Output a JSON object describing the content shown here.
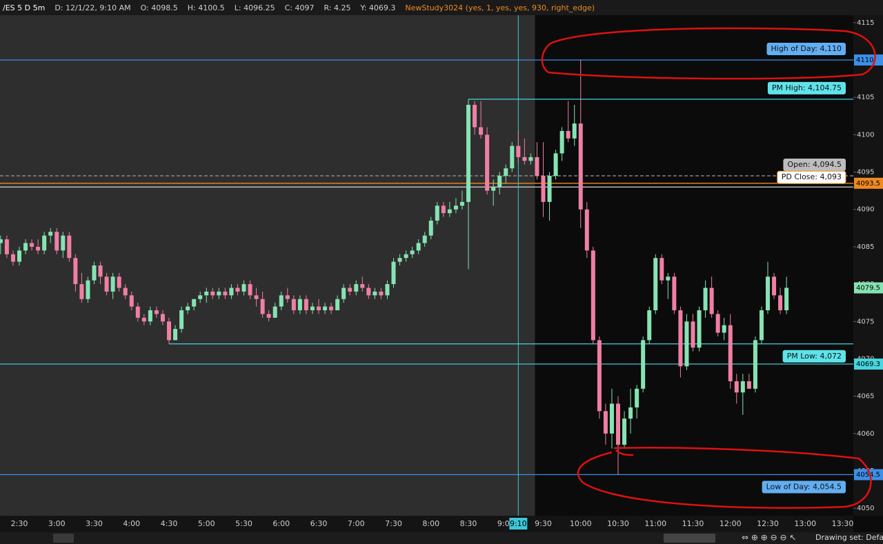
{
  "chart_data": {
    "type": "candlestick",
    "symbol": "/ES 5 D 5m",
    "info": [
      "D: 12/1/22, 9:10 AM",
      "O: 4098.5",
      "H: 4100.5",
      "L: 4096.25",
      "C: 4097",
      "R: 4.25",
      "Y: 4069.3"
    ],
    "study": "NewStudy3024 (yes, 1, yes, yes, 930, right_edge)",
    "up_color": "#86e3b3",
    "down_color": "#ef7fa3",
    "session_start": "9:30",
    "crosshair_x": "9:10",
    "ylim": [
      4049,
      4116
    ],
    "yticks": [
      4050,
      4055,
      4060,
      4065,
      4070,
      4075,
      4080,
      4085,
      4090,
      4095,
      4100,
      4105,
      4110,
      4115
    ],
    "xticks": [
      "2:30",
      "3:00",
      "3:30",
      "4:00",
      "4:30",
      "5:00",
      "5:30",
      "6:00",
      "6:30",
      "7:00",
      "7:30",
      "8:00",
      "8:30",
      "9:00",
      "9:30",
      "10:00",
      "10:30",
      "11:00",
      "11:30",
      "12:00",
      "12:30",
      "13:00",
      "13:30"
    ],
    "levels": [
      {
        "label": "High of Day: 4,110",
        "value": 4110,
        "color": "#3d8fe8",
        "bubble": "#62aef2"
      },
      {
        "label": "PM High: 4,104.75",
        "value": 4104.75,
        "color": "#45d6df",
        "bubble": "#5fe3ea",
        "start": "8:30"
      },
      {
        "label": "Open: 4,094.5",
        "value": 4094.5,
        "color": "#9a9a9a",
        "bubble": "#bdbdbd",
        "dashed": true
      },
      {
        "label": "PD Close: 4,093",
        "value": 4093,
        "color": "#d8d8d8",
        "bubble": "#ffffff"
      },
      {
        "value": 4093.5,
        "color": "#f08a20"
      },
      {
        "label": "PM Low: 4,072",
        "value": 4072,
        "color": "#45d6df",
        "bubble": "#5fe3ea",
        "start": "4:30"
      },
      {
        "value": 4069.3,
        "color": "#45c6d8"
      },
      {
        "label": "Low of Day: 4,054.5",
        "value": 4054.5,
        "color": "#3d8fe8",
        "bubble": "#62aef2"
      }
    ],
    "price_tags": [
      {
        "value": 4110,
        "color": "#3d8fe8"
      },
      {
        "value": 4093.5,
        "color": "#f08a20"
      },
      {
        "value": 4079.5,
        "color": "#86e3b3"
      },
      {
        "value": 4069.3,
        "color": "#45d6df"
      },
      {
        "value": 4054.5,
        "color": "#3d8fe8"
      }
    ],
    "candles": [
      {
        "x": "2:10",
        "open": 4088,
        "high": 4088.5,
        "low": 4085,
        "close": 4085.5
      },
      {
        "x": "2:15",
        "open": 4085.5,
        "high": 4086.5,
        "low": 4084,
        "close": 4086
      },
      {
        "x": "2:20",
        "open": 4086,
        "high": 4086.5,
        "low": 4083.5,
        "close": 4084
      },
      {
        "x": "2:25",
        "open": 4084,
        "high": 4084.5,
        "low": 4082.5,
        "close": 4083
      },
      {
        "x": "2:30",
        "open": 4083,
        "high": 4085,
        "low": 4082.5,
        "close": 4084.5
      },
      {
        "x": "2:35",
        "open": 4084.5,
        "high": 4086,
        "low": 4084,
        "close": 4085.5
      },
      {
        "x": "2:40",
        "open": 4085.5,
        "high": 4086,
        "low": 4084.5,
        "close": 4085
      },
      {
        "x": "2:45",
        "open": 4085,
        "high": 4086,
        "low": 4084,
        "close": 4084.5
      },
      {
        "x": "2:50",
        "open": 4084.5,
        "high": 4087,
        "low": 4084,
        "close": 4086.5
      },
      {
        "x": "2:55",
        "open": 4086.5,
        "high": 4087.5,
        "low": 4085.5,
        "close": 4087
      },
      {
        "x": "3:00",
        "open": 4087,
        "high": 4087.5,
        "low": 4084,
        "close": 4084.5
      },
      {
        "x": "3:05",
        "open": 4084.5,
        "high": 4087,
        "low": 4083.5,
        "close": 4086.5
      },
      {
        "x": "3:10",
        "open": 4086.5,
        "high": 4087,
        "low": 4083,
        "close": 4083.5
      },
      {
        "x": "3:15",
        "open": 4083.5,
        "high": 4084,
        "low": 4079,
        "close": 4080
      },
      {
        "x": "3:20",
        "open": 4080,
        "high": 4081.5,
        "low": 4077.5,
        "close": 4078
      },
      {
        "x": "3:25",
        "open": 4078,
        "high": 4081,
        "low": 4077.5,
        "close": 4080.5
      },
      {
        "x": "3:30",
        "open": 4080.5,
        "high": 4083,
        "low": 4080,
        "close": 4082.5
      },
      {
        "x": "3:35",
        "open": 4082.5,
        "high": 4083,
        "low": 4080,
        "close": 4081
      },
      {
        "x": "3:40",
        "open": 4081,
        "high": 4081.5,
        "low": 4078.5,
        "close": 4079
      },
      {
        "x": "3:45",
        "open": 4079,
        "high": 4081.5,
        "low": 4078,
        "close": 4081
      },
      {
        "x": "3:50",
        "open": 4081,
        "high": 4081.5,
        "low": 4079,
        "close": 4079.5
      },
      {
        "x": "3:55",
        "open": 4079.5,
        "high": 4080,
        "low": 4078,
        "close": 4078.5
      },
      {
        "x": "4:00",
        "open": 4078.5,
        "high": 4079,
        "low": 4076.5,
        "close": 4077
      },
      {
        "x": "4:05",
        "open": 4077,
        "high": 4077.5,
        "low": 4075,
        "close": 4075.5
      },
      {
        "x": "4:10",
        "open": 4075.5,
        "high": 4076,
        "low": 4074.5,
        "close": 4075
      },
      {
        "x": "4:15",
        "open": 4075,
        "high": 4077,
        "low": 4074.5,
        "close": 4076.5
      },
      {
        "x": "4:20",
        "open": 4076.5,
        "high": 4077,
        "low": 4075.5,
        "close": 4076
      },
      {
        "x": "4:25",
        "open": 4076,
        "high": 4076.5,
        "low": 4074.5,
        "close": 4075
      },
      {
        "x": "4:30",
        "open": 4075,
        "high": 4075.5,
        "low": 4072,
        "close": 4072.5
      },
      {
        "x": "4:35",
        "open": 4072.5,
        "high": 4074.5,
        "low": 4072.5,
        "close": 4074
      },
      {
        "x": "4:40",
        "open": 4074,
        "high": 4077,
        "low": 4073.5,
        "close": 4076.5
      },
      {
        "x": "4:45",
        "open": 4076.5,
        "high": 4077.5,
        "low": 4076,
        "close": 4077
      },
      {
        "x": "4:50",
        "open": 4077,
        "high": 4078,
        "low": 4076.5,
        "close": 4078
      },
      {
        "x": "4:55",
        "open": 4078,
        "high": 4079,
        "low": 4077.5,
        "close": 4078.5
      },
      {
        "x": "5:00",
        "open": 4078.5,
        "high": 4079.5,
        "low": 4077.5,
        "close": 4079
      },
      {
        "x": "5:05",
        "open": 4079,
        "high": 4079.5,
        "low": 4078,
        "close": 4078.5
      },
      {
        "x": "5:10",
        "open": 4078.5,
        "high": 4079.5,
        "low": 4078,
        "close": 4079
      },
      {
        "x": "5:15",
        "open": 4079,
        "high": 4079.5,
        "low": 4078,
        "close": 4078.5
      },
      {
        "x": "5:20",
        "open": 4078.5,
        "high": 4080,
        "low": 4078,
        "close": 4079.5
      },
      {
        "x": "5:25",
        "open": 4079.5,
        "high": 4080,
        "low": 4078.5,
        "close": 4079
      },
      {
        "x": "5:30",
        "open": 4079,
        "high": 4080.5,
        "low": 4078.5,
        "close": 4080
      },
      {
        "x": "5:35",
        "open": 4080,
        "high": 4080.5,
        "low": 4078,
        "close": 4078.5
      },
      {
        "x": "5:40",
        "open": 4078.5,
        "high": 4079.5,
        "low": 4077,
        "close": 4078
      },
      {
        "x": "5:45",
        "open": 4078,
        "high": 4079,
        "low": 4075.5,
        "close": 4076
      },
      {
        "x": "5:50",
        "open": 4076,
        "high": 4076.5,
        "low": 4075,
        "close": 4075.5
      },
      {
        "x": "5:55",
        "open": 4075.5,
        "high": 4077.5,
        "low": 4075.5,
        "close": 4077
      },
      {
        "x": "6:00",
        "open": 4077,
        "high": 4079,
        "low": 4076.5,
        "close": 4078.5
      },
      {
        "x": "6:05",
        "open": 4078.5,
        "high": 4079.5,
        "low": 4077.5,
        "close": 4078
      },
      {
        "x": "6:10",
        "open": 4078,
        "high": 4078.5,
        "low": 4076,
        "close": 4076.5
      },
      {
        "x": "6:15",
        "open": 4076.5,
        "high": 4078.5,
        "low": 4076,
        "close": 4078
      },
      {
        "x": "6:20",
        "open": 4078,
        "high": 4078.5,
        "low": 4076,
        "close": 4076.5
      },
      {
        "x": "6:25",
        "open": 4076.5,
        "high": 4077.5,
        "low": 4076,
        "close": 4077
      },
      {
        "x": "6:30",
        "open": 4077,
        "high": 4078,
        "low": 4076,
        "close": 4076.5
      },
      {
        "x": "6:35",
        "open": 4076.5,
        "high": 4077.5,
        "low": 4076,
        "close": 4077
      },
      {
        "x": "6:40",
        "open": 4077,
        "high": 4077.5,
        "low": 4076,
        "close": 4076.5
      },
      {
        "x": "6:45",
        "open": 4076.5,
        "high": 4078.5,
        "low": 4076.5,
        "close": 4078
      },
      {
        "x": "6:50",
        "open": 4078,
        "high": 4080,
        "low": 4077.5,
        "close": 4079.5
      },
      {
        "x": "6:55",
        "open": 4079.5,
        "high": 4080,
        "low": 4078.5,
        "close": 4079
      },
      {
        "x": "7:00",
        "open": 4079,
        "high": 4080.5,
        "low": 4078.5,
        "close": 4080
      },
      {
        "x": "7:05",
        "open": 4080,
        "high": 4081,
        "low": 4079,
        "close": 4079.5
      },
      {
        "x": "7:10",
        "open": 4079.5,
        "high": 4080,
        "low": 4078,
        "close": 4078.5
      },
      {
        "x": "7:15",
        "open": 4078.5,
        "high": 4079.5,
        "low": 4078,
        "close": 4079
      },
      {
        "x": "7:20",
        "open": 4079,
        "high": 4079.5,
        "low": 4078,
        "close": 4078.5
      },
      {
        "x": "7:25",
        "open": 4078.5,
        "high": 4080.5,
        "low": 4078,
        "close": 4080
      },
      {
        "x": "7:30",
        "open": 4080,
        "high": 4083.5,
        "low": 4079.5,
        "close": 4083
      },
      {
        "x": "7:35",
        "open": 4083,
        "high": 4084,
        "low": 4082.5,
        "close": 4083.5
      },
      {
        "x": "7:40",
        "open": 4083.5,
        "high": 4084.5,
        "low": 4083,
        "close": 4084
      },
      {
        "x": "7:45",
        "open": 4084,
        "high": 4085,
        "low": 4083.5,
        "close": 4084.5
      },
      {
        "x": "7:50",
        "open": 4084.5,
        "high": 4086,
        "low": 4084,
        "close": 4085.5
      },
      {
        "x": "7:55",
        "open": 4085.5,
        "high": 4087,
        "low": 4085,
        "close": 4086.5
      },
      {
        "x": "8:00",
        "open": 4086.5,
        "high": 4089,
        "low": 4086,
        "close": 4088.5
      },
      {
        "x": "8:05",
        "open": 4088.5,
        "high": 4091,
        "low": 4088,
        "close": 4090.5
      },
      {
        "x": "8:10",
        "open": 4090.5,
        "high": 4091,
        "low": 4089,
        "close": 4089.5
      },
      {
        "x": "8:15",
        "open": 4089.5,
        "high": 4091,
        "low": 4089,
        "close": 4090
      },
      {
        "x": "8:20",
        "open": 4090,
        "high": 4091.5,
        "low": 4089.5,
        "close": 4090.5
      },
      {
        "x": "8:25",
        "open": 4090.5,
        "high": 4092.5,
        "low": 4090,
        "close": 4091
      },
      {
        "x": "8:30",
        "open": 4091,
        "high": 4104.75,
        "low": 4082,
        "close": 4104
      },
      {
        "x": "8:35",
        "open": 4104,
        "high": 4104.5,
        "low": 4100,
        "close": 4101
      },
      {
        "x": "8:40",
        "open": 4101,
        "high": 4104.5,
        "low": 4099.5,
        "close": 4100
      },
      {
        "x": "8:45",
        "open": 4100,
        "high": 4101,
        "low": 4092,
        "close": 4092.5
      },
      {
        "x": "8:50",
        "open": 4092.5,
        "high": 4094,
        "low": 4090.5,
        "close": 4093
      },
      {
        "x": "8:55",
        "open": 4093,
        "high": 4095,
        "low": 4092,
        "close": 4094.5
      },
      {
        "x": "9:00",
        "open": 4094.5,
        "high": 4096,
        "low": 4093.5,
        "close": 4095.5
      },
      {
        "x": "9:05",
        "open": 4095.5,
        "high": 4099,
        "low": 4095,
        "close": 4098.5
      },
      {
        "x": "9:10",
        "open": 4098.5,
        "high": 4100.5,
        "low": 4096.25,
        "close": 4097
      },
      {
        "x": "9:15",
        "open": 4097,
        "high": 4099.5,
        "low": 4096,
        "close": 4096.5
      },
      {
        "x": "9:20",
        "open": 4096.5,
        "high": 4097.5,
        "low": 4096,
        "close": 4097
      },
      {
        "x": "9:25",
        "open": 4097,
        "high": 4099,
        "low": 4094,
        "close": 4094.5
      },
      {
        "x": "9:30",
        "open": 4094.5,
        "high": 4099,
        "low": 4089,
        "close": 4091
      },
      {
        "x": "9:35",
        "open": 4091,
        "high": 4095,
        "low": 4088.5,
        "close": 4094.5
      },
      {
        "x": "9:40",
        "open": 4094.5,
        "high": 4098,
        "low": 4094,
        "close": 4097.5
      },
      {
        "x": "9:45",
        "open": 4097.5,
        "high": 4101,
        "low": 4096.5,
        "close": 4100.5
      },
      {
        "x": "9:50",
        "open": 4100.5,
        "high": 4104.5,
        "low": 4099,
        "close": 4099.5
      },
      {
        "x": "9:55",
        "open": 4099.5,
        "high": 4104,
        "low": 4098.5,
        "close": 4101.5
      },
      {
        "x": "10:00",
        "open": 4101.5,
        "high": 4110,
        "low": 4087.5,
        "close": 4090
      },
      {
        "x": "10:05",
        "open": 4090,
        "high": 4091,
        "low": 4083.5,
        "close": 4084.5
      },
      {
        "x": "10:10",
        "open": 4084.5,
        "high": 4085,
        "low": 4072,
        "close": 4072.5
      },
      {
        "x": "10:15",
        "open": 4072.5,
        "high": 4073,
        "low": 4062,
        "close": 4063
      },
      {
        "x": "10:20",
        "open": 4063,
        "high": 4064,
        "low": 4058.5,
        "close": 4060
      },
      {
        "x": "10:25",
        "open": 4060,
        "high": 4066,
        "low": 4058,
        "close": 4064
      },
      {
        "x": "10:30",
        "open": 4064,
        "high": 4065,
        "low": 4054.5,
        "close": 4058.5
      },
      {
        "x": "10:35",
        "open": 4058.5,
        "high": 4063,
        "low": 4058,
        "close": 4062
      },
      {
        "x": "10:40",
        "open": 4062,
        "high": 4066,
        "low": 4060,
        "close": 4063.5
      },
      {
        "x": "10:45",
        "open": 4063.5,
        "high": 4066.5,
        "low": 4062,
        "close": 4066
      },
      {
        "x": "10:50",
        "open": 4066,
        "high": 4073,
        "low": 4065.5,
        "close": 4072.5
      },
      {
        "x": "10:55",
        "open": 4072.5,
        "high": 4077,
        "low": 4072,
        "close": 4076.5
      },
      {
        "x": "11:00",
        "open": 4076.5,
        "high": 4084,
        "low": 4076,
        "close": 4083.5
      },
      {
        "x": "11:05",
        "open": 4083.5,
        "high": 4084,
        "low": 4080,
        "close": 4080.5
      },
      {
        "x": "11:10",
        "open": 4080.5,
        "high": 4081.5,
        "low": 4078,
        "close": 4081
      },
      {
        "x": "11:15",
        "open": 4081,
        "high": 4081.5,
        "low": 4076,
        "close": 4076.5
      },
      {
        "x": "11:20",
        "open": 4076.5,
        "high": 4077,
        "low": 4067.5,
        "close": 4069
      },
      {
        "x": "11:25",
        "open": 4069,
        "high": 4076,
        "low": 4068.5,
        "close": 4075
      },
      {
        "x": "11:30",
        "open": 4075,
        "high": 4076,
        "low": 4071,
        "close": 4071.5
      },
      {
        "x": "11:35",
        "open": 4071.5,
        "high": 4077,
        "low": 4071,
        "close": 4076.5
      },
      {
        "x": "11:40",
        "open": 4076.5,
        "high": 4080.5,
        "low": 4075.5,
        "close": 4079.5
      },
      {
        "x": "11:45",
        "open": 4079.5,
        "high": 4081,
        "low": 4075.5,
        "close": 4076
      },
      {
        "x": "11:50",
        "open": 4076,
        "high": 4076.5,
        "low": 4073,
        "close": 4073.5
      },
      {
        "x": "11:55",
        "open": 4073.5,
        "high": 4075.5,
        "low": 4072.5,
        "close": 4074.5
      },
      {
        "x": "12:00",
        "open": 4074.5,
        "high": 4076,
        "low": 4066,
        "close": 4067
      },
      {
        "x": "12:05",
        "open": 4067,
        "high": 4068,
        "low": 4064,
        "close": 4065.5
      },
      {
        "x": "12:10",
        "open": 4065.5,
        "high": 4068,
        "low": 4062.5,
        "close": 4067
      },
      {
        "x": "12:15",
        "open": 4067,
        "high": 4068,
        "low": 4066,
        "close": 4066
      },
      {
        "x": "12:20",
        "open": 4066,
        "high": 4073,
        "low": 4065.5,
        "close": 4072.5
      },
      {
        "x": "12:25",
        "open": 4072.5,
        "high": 4077,
        "low": 4072,
        "close": 4076.5
      },
      {
        "x": "12:30",
        "open": 4076.5,
        "high": 4083,
        "low": 4076,
        "close": 4081
      },
      {
        "x": "12:35",
        "open": 4081,
        "high": 4081.5,
        "low": 4078,
        "close": 4078.5
      },
      {
        "x": "12:40",
        "open": 4078.5,
        "high": 4079.5,
        "low": 4076,
        "close": 4076.5
      },
      {
        "x": "12:45",
        "open": 4076.5,
        "high": 4081,
        "low": 4076,
        "close": 4079.5
      }
    ],
    "toolbar_text": "Drawing set: Defau"
  }
}
